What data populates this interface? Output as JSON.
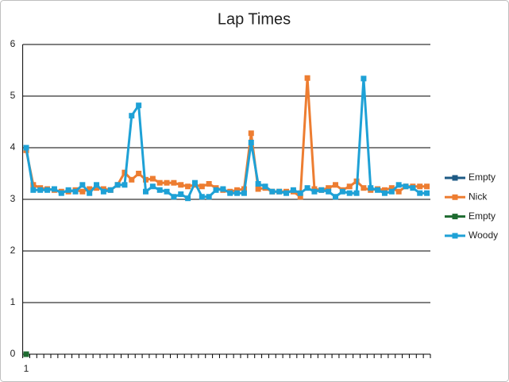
{
  "chart_data": {
    "type": "line",
    "title": "Lap Times",
    "categories": [
      "1",
      null,
      null,
      null,
      null,
      null,
      null,
      null,
      null,
      null,
      null,
      null,
      null,
      null,
      null,
      null,
      null,
      null,
      null,
      null,
      null,
      null,
      null,
      null,
      null,
      null,
      null,
      null,
      null,
      null,
      null,
      null,
      null,
      null,
      null,
      null,
      null,
      null,
      null,
      null,
      null,
      null,
      null,
      null,
      null,
      null,
      null,
      null,
      null,
      null,
      null,
      null,
      null,
      null,
      null,
      null,
      null,
      null
    ],
    "series": [
      {
        "name": "Empty",
        "color": "#1d5a84",
        "values": [
          0,
          null,
          null,
          null,
          null,
          null,
          null,
          null,
          null,
          null,
          null,
          null,
          null,
          null,
          null,
          null,
          null,
          null,
          null,
          null,
          null,
          null,
          null,
          null,
          null,
          null,
          null,
          null,
          null,
          null,
          null,
          null,
          null,
          null,
          null,
          null,
          null,
          null,
          null,
          null,
          null,
          null,
          null,
          null,
          null,
          null,
          null,
          null,
          null,
          null,
          null,
          null,
          null,
          null,
          null,
          null,
          null,
          null
        ]
      },
      {
        "name": "Nick",
        "color": "#ed7d31",
        "values": [
          3.95,
          3.28,
          3.22,
          3.2,
          3.18,
          3.15,
          3.15,
          3.18,
          3.15,
          3.2,
          3.22,
          3.2,
          3.18,
          3.28,
          3.52,
          3.38,
          3.5,
          3.38,
          3.4,
          3.32,
          3.32,
          3.32,
          3.28,
          3.25,
          3.28,
          3.25,
          3.3,
          3.22,
          3.18,
          3.15,
          3.18,
          3.2,
          4.28,
          3.2,
          3.22,
          3.15,
          3.15,
          3.15,
          3.15,
          3.05,
          5.35,
          3.2,
          3.18,
          3.22,
          3.28,
          3.18,
          3.25,
          3.35,
          3.22,
          3.18,
          3.2,
          3.18,
          3.22,
          3.15,
          3.25,
          3.25,
          3.25,
          3.25
        ]
      },
      {
        "name": "Empty",
        "color": "#1e6b30",
        "values": [
          0,
          null,
          null,
          null,
          null,
          null,
          null,
          null,
          null,
          null,
          null,
          null,
          null,
          null,
          null,
          null,
          null,
          null,
          null,
          null,
          null,
          null,
          null,
          null,
          null,
          null,
          null,
          null,
          null,
          null,
          null,
          null,
          null,
          null,
          null,
          null,
          null,
          null,
          null,
          null,
          null,
          null,
          null,
          null,
          null,
          null,
          null,
          null,
          null,
          null,
          null,
          null,
          null,
          null,
          null,
          null,
          null,
          null
        ]
      },
      {
        "name": "Woody",
        "color": "#1ea1d6",
        "values": [
          4.0,
          3.18,
          3.18,
          3.18,
          3.2,
          3.12,
          3.18,
          3.15,
          3.28,
          3.12,
          3.28,
          3.15,
          3.18,
          3.28,
          3.28,
          4.62,
          4.82,
          3.15,
          3.25,
          3.18,
          3.15,
          3.05,
          3.1,
          3.02,
          3.32,
          3.05,
          3.05,
          3.18,
          3.2,
          3.12,
          3.12,
          3.12,
          4.1,
          3.3,
          3.25,
          3.15,
          3.15,
          3.12,
          3.18,
          3.12,
          3.22,
          3.15,
          3.18,
          3.15,
          3.05,
          3.15,
          3.12,
          3.12,
          5.34,
          3.22,
          3.18,
          3.12,
          3.15,
          3.28,
          3.25,
          3.22,
          3.12,
          3.12
        ]
      }
    ],
    "ylim": [
      0,
      6
    ],
    "yticks": [
      0,
      1,
      2,
      3,
      4,
      5,
      6
    ],
    "grid": true,
    "legend": "right"
  }
}
